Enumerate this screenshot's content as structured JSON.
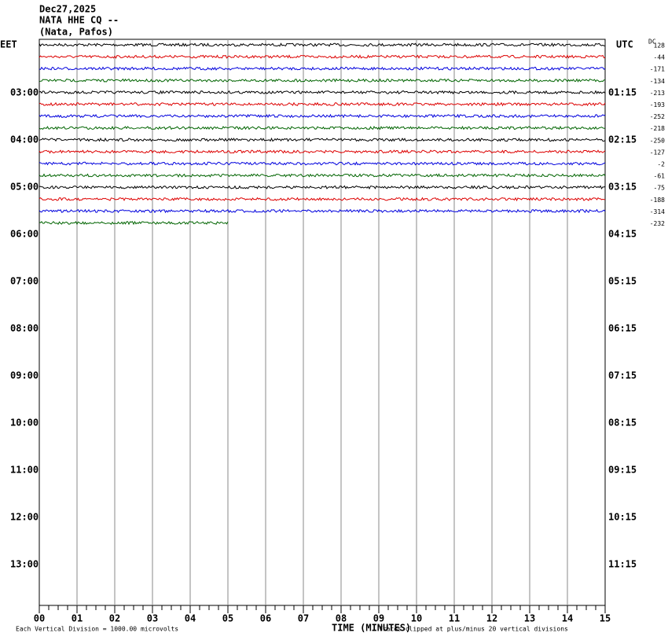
{
  "header": {
    "date": "Dec27,2025",
    "station": "NATA HHE CQ --",
    "location": "(Nata, Pafos)"
  },
  "left_zone": "EET",
  "right_zone": "UTC",
  "dc_heading": "DC",
  "left_times": [
    "03:00",
    "04:00",
    "05:00",
    "06:00",
    "07:00",
    "08:00",
    "09:00",
    "10:00",
    "11:00",
    "12:00",
    "13:00"
  ],
  "right_times": [
    "01:15",
    "02:15",
    "03:15",
    "04:15",
    "05:15",
    "06:15",
    "07:15",
    "08:15",
    "09:15",
    "10:15",
    "11:15"
  ],
  "dc_offsets": [
    128,
    -44,
    -171,
    -134,
    -213,
    -193,
    -252,
    -218,
    -250,
    -127,
    -2,
    -61,
    -75,
    -188,
    -314,
    -232
  ],
  "trace_colors": [
    "#000000",
    "#dd0000",
    "#0000dd",
    "#006400"
  ],
  "x_labels": [
    "00",
    "01",
    "02",
    "03",
    "04",
    "05",
    "06",
    "07",
    "08",
    "09",
    "10",
    "11",
    "12",
    "13",
    "14",
    "15"
  ],
  "x_title": "TIME (MINUTES)",
  "footer_left": "Each Vertical Division = 1000.00 microvolts",
  "footer_right": "Traces clipped at plus/minus 20 vertical divisions"
}
